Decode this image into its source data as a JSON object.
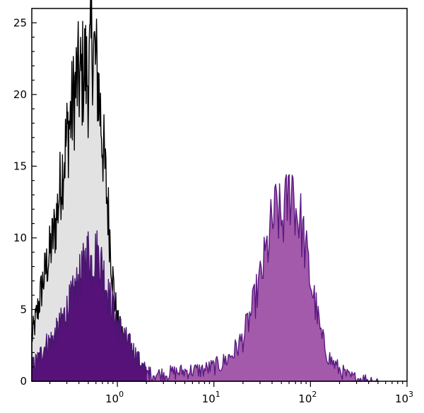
{
  "chart_data": {
    "type": "area",
    "title": "",
    "xlabel": "",
    "ylabel": "",
    "x_scale": "log",
    "xlim": [
      0.13,
      1000
    ],
    "ylim": [
      0,
      26
    ],
    "grid": false,
    "legend": "none",
    "x_ticks": [
      {
        "value": 1,
        "base": "10",
        "exp": "0"
      },
      {
        "value": 10,
        "base": "10",
        "exp": "1"
      },
      {
        "value": 100,
        "base": "10",
        "exp": "2"
      },
      {
        "value": 1000,
        "base": "10",
        "exp": "3"
      }
    ],
    "y_ticks": [
      "0",
      "5",
      "10",
      "15",
      "20",
      "25"
    ],
    "series": [
      {
        "fill": "#e2e2e2",
        "stroke": "#000000",
        "x": [
          0.13,
          0.15,
          0.17,
          0.2,
          0.23,
          0.26,
          0.3,
          0.34,
          0.38,
          0.42,
          0.46,
          0.5,
          0.55,
          0.6,
          0.63,
          0.7,
          0.8,
          0.9,
          1.0,
          1.15,
          1.3,
          1.5,
          1.8,
          2.2
        ],
        "y": [
          3,
          5,
          7,
          9,
          11,
          14,
          17,
          19,
          21,
          21,
          22,
          21,
          24,
          22,
          21,
          17,
          12,
          7,
          4,
          3,
          2,
          1,
          0.5,
          0
        ]
      },
      {
        "fill": "#57127a",
        "stroke": "#4a1670",
        "x": [
          0.13,
          0.15,
          0.18,
          0.22,
          0.26,
          0.3,
          0.35,
          0.4,
          0.45,
          0.5,
          0.55,
          0.6,
          0.7,
          0.8,
          0.9,
          1.0,
          1.2,
          1.5,
          1.8,
          2.2
        ],
        "y": [
          1,
          1.5,
          2.5,
          3,
          4,
          5,
          6,
          7,
          8,
          9,
          8,
          9,
          8,
          6,
          5,
          4,
          3,
          2,
          1,
          0.4
        ]
      },
      {
        "fill": "#a45aaa",
        "stroke": "#5a1a82",
        "x": [
          2,
          3,
          5,
          8,
          12,
          16,
          20,
          25,
          30,
          35,
          40,
          45,
          50,
          55,
          60,
          65,
          70,
          80,
          90,
          100,
          115,
          130,
          160,
          200,
          250,
          300,
          400,
          500
        ],
        "y": [
          0.5,
          0.5,
          0.7,
          0.8,
          1.2,
          2,
          3,
          5,
          7,
          9,
          11,
          12,
          11,
          12,
          13,
          14,
          12,
          11,
          9,
          7,
          5,
          3,
          1.5,
          0.8,
          0.3,
          0.2,
          0.1,
          0
        ]
      }
    ]
  }
}
